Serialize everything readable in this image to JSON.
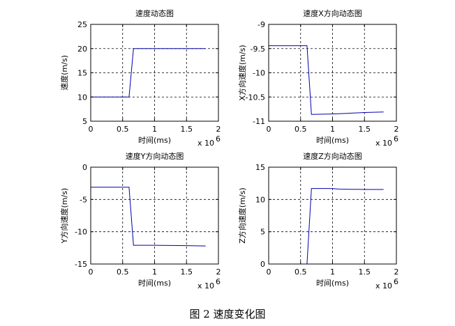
{
  "figure_caption": "图 2  速度变化图",
  "chart_data": [
    {
      "type": "line",
      "title": "速度动态图",
      "xlabel": "时间(ms)",
      "ylabel": "速度(m/s)",
      "x_multiplier_label": "x 10",
      "x_multiplier_exponent": "6",
      "xlim": [
        0,
        2
      ],
      "ylim": [
        5,
        25
      ],
      "xticks": [
        "0",
        "0.5",
        "1",
        "1.5",
        "2"
      ],
      "yticks": [
        "5",
        "10",
        "15",
        "20",
        "25"
      ],
      "grid": true,
      "line_color": "#0000aa",
      "series": [
        {
          "x": [
            0,
            0.6,
            0.67,
            0.7,
            1.8
          ],
          "y": [
            10,
            10,
            20,
            20,
            20
          ]
        }
      ]
    },
    {
      "type": "line",
      "title": "速度X方向动态图",
      "xlabel": "时间(ms)",
      "ylabel": "X方向速度(m/s)",
      "x_multiplier_label": "x 10",
      "x_multiplier_exponent": "6",
      "xlim": [
        0,
        2
      ],
      "ylim": [
        -11,
        -9
      ],
      "xticks": [
        "0",
        "0.5",
        "1",
        "1.5",
        "2"
      ],
      "yticks": [
        "-11",
        "-10.5",
        "-10",
        "-9.5",
        "-9"
      ],
      "grid": true,
      "line_color": "#0000aa",
      "series": [
        {
          "x": [
            0,
            0.6,
            0.67,
            1.0,
            1.2,
            1.5,
            1.8
          ],
          "y": [
            -9.44,
            -9.44,
            -10.86,
            -10.85,
            -10.84,
            -10.82,
            -10.81
          ]
        }
      ]
    },
    {
      "type": "line",
      "title": "速度Y方向动态图",
      "xlabel": "时间(ms)",
      "ylabel": "Y方向速度(m/s)",
      "x_multiplier_label": "x 10",
      "x_multiplier_exponent": "6",
      "xlim": [
        0,
        2
      ],
      "ylim": [
        -15,
        0
      ],
      "xticks": [
        "0",
        "0.5",
        "1",
        "1.5",
        "2"
      ],
      "yticks": [
        "-15",
        "-10",
        "-5",
        "0"
      ],
      "grid": true,
      "line_color": "#0000aa",
      "series": [
        {
          "x": [
            0,
            0.6,
            0.67,
            1.0,
            1.5,
            1.8
          ],
          "y": [
            -3.1,
            -3.1,
            -12.1,
            -12.1,
            -12.15,
            -12.2
          ]
        }
      ]
    },
    {
      "type": "line",
      "title": "速度Z方向动态图",
      "xlabel": "时间(ms)",
      "ylabel": "Z方向速度(m/s)",
      "x_multiplier_label": "x 10",
      "x_multiplier_exponent": "6",
      "xlim": [
        0,
        2
      ],
      "ylim": [
        0,
        15
      ],
      "xticks": [
        "0",
        "0.5",
        "1",
        "1.5",
        "2"
      ],
      "yticks": [
        "0",
        "5",
        "10",
        "15"
      ],
      "grid": true,
      "line_color": "#0000aa",
      "series": [
        {
          "x": [
            0,
            0.6,
            0.67,
            1.0,
            1.1,
            1.5,
            1.8
          ],
          "y": [
            0,
            0,
            11.7,
            11.7,
            11.6,
            11.55,
            11.55
          ]
        }
      ]
    }
  ]
}
